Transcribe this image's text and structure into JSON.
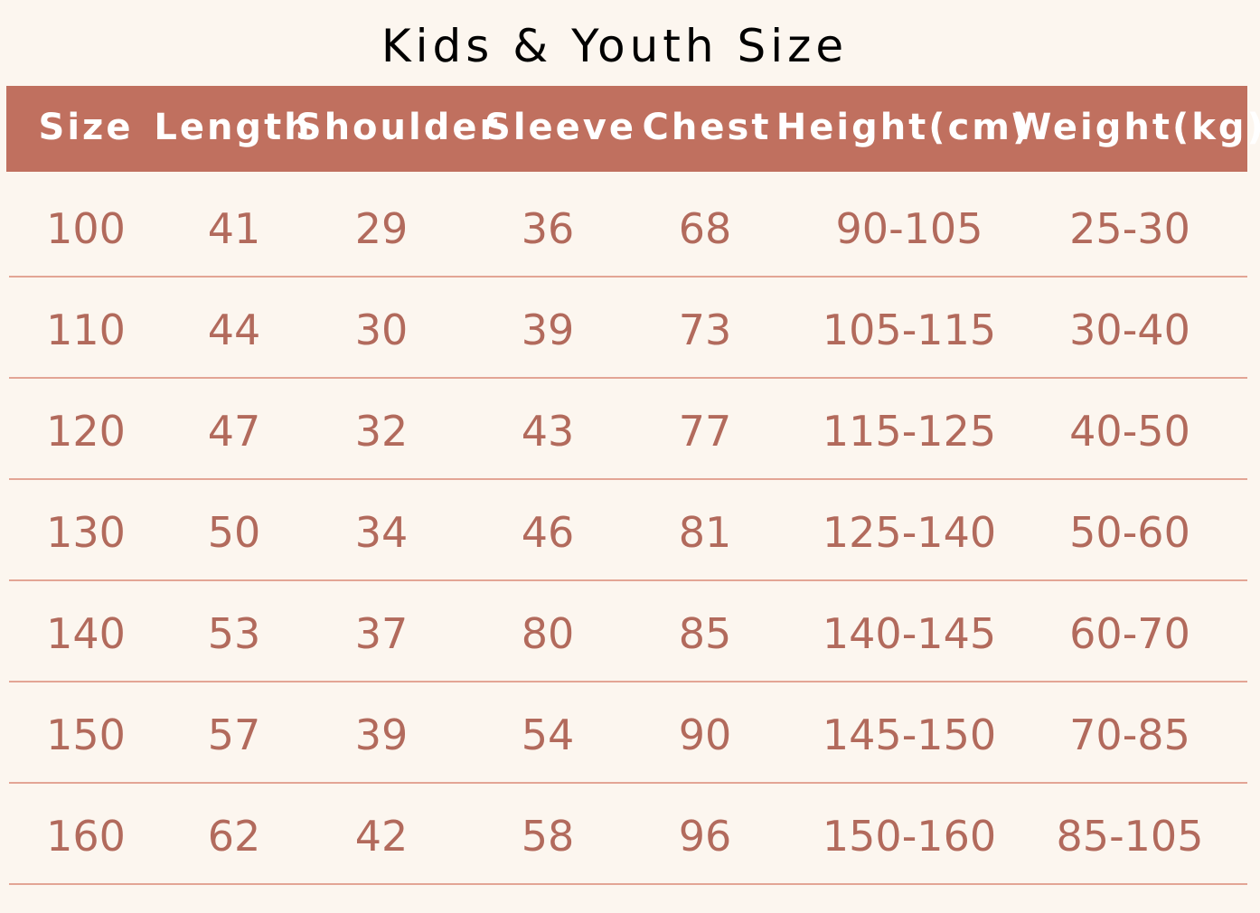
{
  "title": "Kids & Youth Size",
  "table": {
    "header": [
      "Size",
      "Length",
      "Shoulder",
      "Sleeve",
      "Chest",
      "Height(cm)",
      "Weight(kg)"
    ],
    "rows": [
      [
        "100",
        "41",
        "29",
        "36",
        "68",
        "90-105",
        "25-30"
      ],
      [
        "110",
        "44",
        "30",
        "39",
        "73",
        "105-115",
        "30-40"
      ],
      [
        "120",
        "47",
        "32",
        "43",
        "77",
        "115-125",
        "40-50"
      ],
      [
        "130",
        "50",
        "34",
        "46",
        "81",
        "125-140",
        "50-60"
      ],
      [
        "140",
        "53",
        "37",
        "80",
        "85",
        "140-145",
        "60-70"
      ],
      [
        "150",
        "57",
        "39",
        "54",
        "90",
        "145-150",
        "70-85"
      ],
      [
        "160",
        "62",
        "42",
        "58",
        "96",
        "150-160",
        "85-105"
      ]
    ]
  }
}
